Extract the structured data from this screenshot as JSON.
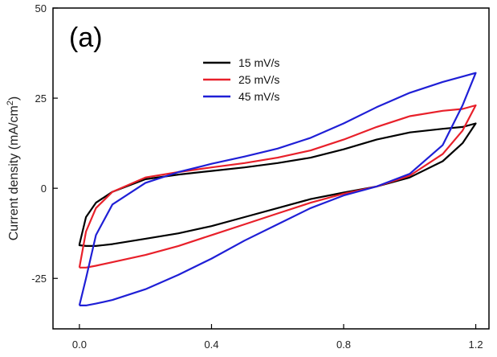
{
  "chart_data": {
    "type": "line",
    "panel_label": "(a)",
    "xlabel": "",
    "ylabel_main": "Current density (mA/cm",
    "ylabel_sup": "2",
    "ylabel_end": ")",
    "xlim": [
      -0.08,
      1.24
    ],
    "ylim": [
      -39,
      50
    ],
    "xticks": [
      0.0,
      0.4,
      0.8,
      1.2
    ],
    "xtick_labels": [
      "0.0",
      "0.4",
      "0.8",
      "1.2"
    ],
    "yticks": [
      -25,
      0,
      25,
      50
    ],
    "ytick_labels": [
      "-25",
      "0",
      "25",
      "50"
    ],
    "legend_position": "top-center",
    "series": [
      {
        "name": "15 mV/s",
        "color": "#000000",
        "x": [
          0.0,
          0.02,
          0.05,
          0.1,
          0.2,
          0.3,
          0.4,
          0.5,
          0.6,
          0.7,
          0.8,
          0.9,
          1.0,
          1.1,
          1.16,
          1.2,
          1.2,
          1.16,
          1.1,
          1.0,
          0.9,
          0.8,
          0.7,
          0.6,
          0.5,
          0.4,
          0.3,
          0.2,
          0.1,
          0.05,
          0.02,
          0.0,
          0.0
        ],
        "y": [
          -15.6,
          -8.0,
          -4.0,
          -1.0,
          2.5,
          3.8,
          4.8,
          5.8,
          7.0,
          8.5,
          10.8,
          13.5,
          15.5,
          16.5,
          17.0,
          18.0,
          18.0,
          12.5,
          7.5,
          3.0,
          0.5,
          -1.2,
          -3.0,
          -5.5,
          -8.0,
          -10.5,
          -12.5,
          -14.0,
          -15.5,
          -16.0,
          -16.0,
          -15.8,
          -15.6
        ]
      },
      {
        "name": "25 mV/s",
        "color": "#e8202a",
        "x": [
          0.0,
          0.02,
          0.05,
          0.1,
          0.2,
          0.3,
          0.4,
          0.5,
          0.6,
          0.7,
          0.8,
          0.9,
          1.0,
          1.1,
          1.16,
          1.2,
          1.2,
          1.16,
          1.1,
          1.0,
          0.9,
          0.8,
          0.7,
          0.6,
          0.5,
          0.4,
          0.3,
          0.2,
          0.1,
          0.05,
          0.02,
          0.0,
          0.0
        ],
        "y": [
          -22.0,
          -12.0,
          -5.5,
          -1.0,
          3.0,
          4.5,
          5.8,
          7.0,
          8.5,
          10.5,
          13.5,
          17.0,
          20.0,
          21.5,
          22.0,
          23.0,
          23.0,
          16.0,
          9.5,
          3.5,
          0.5,
          -1.5,
          -4.0,
          -7.0,
          -10.0,
          -13.0,
          -16.0,
          -18.5,
          -20.5,
          -21.5,
          -22.0,
          -22.0,
          -22.0
        ]
      },
      {
        "name": "45 mV/s",
        "color": "#1f1fd6",
        "x": [
          0.0,
          0.02,
          0.05,
          0.1,
          0.2,
          0.3,
          0.4,
          0.5,
          0.6,
          0.7,
          0.8,
          0.9,
          1.0,
          1.1,
          1.16,
          1.2,
          1.2,
          1.16,
          1.1,
          1.0,
          0.9,
          0.8,
          0.7,
          0.6,
          0.5,
          0.4,
          0.3,
          0.2,
          0.1,
          0.05,
          0.02,
          0.0,
          0.0
        ],
        "y": [
          -32.5,
          -25.0,
          -13.0,
          -4.5,
          1.5,
          4.5,
          6.8,
          8.8,
          11.0,
          14.0,
          18.0,
          22.5,
          26.5,
          29.5,
          31.0,
          32.0,
          32.0,
          23.0,
          12.0,
          4.0,
          0.5,
          -2.0,
          -5.5,
          -10.0,
          -14.5,
          -19.5,
          -24.0,
          -28.0,
          -31.0,
          -32.0,
          -32.5,
          -32.5,
          -32.5
        ]
      }
    ]
  }
}
